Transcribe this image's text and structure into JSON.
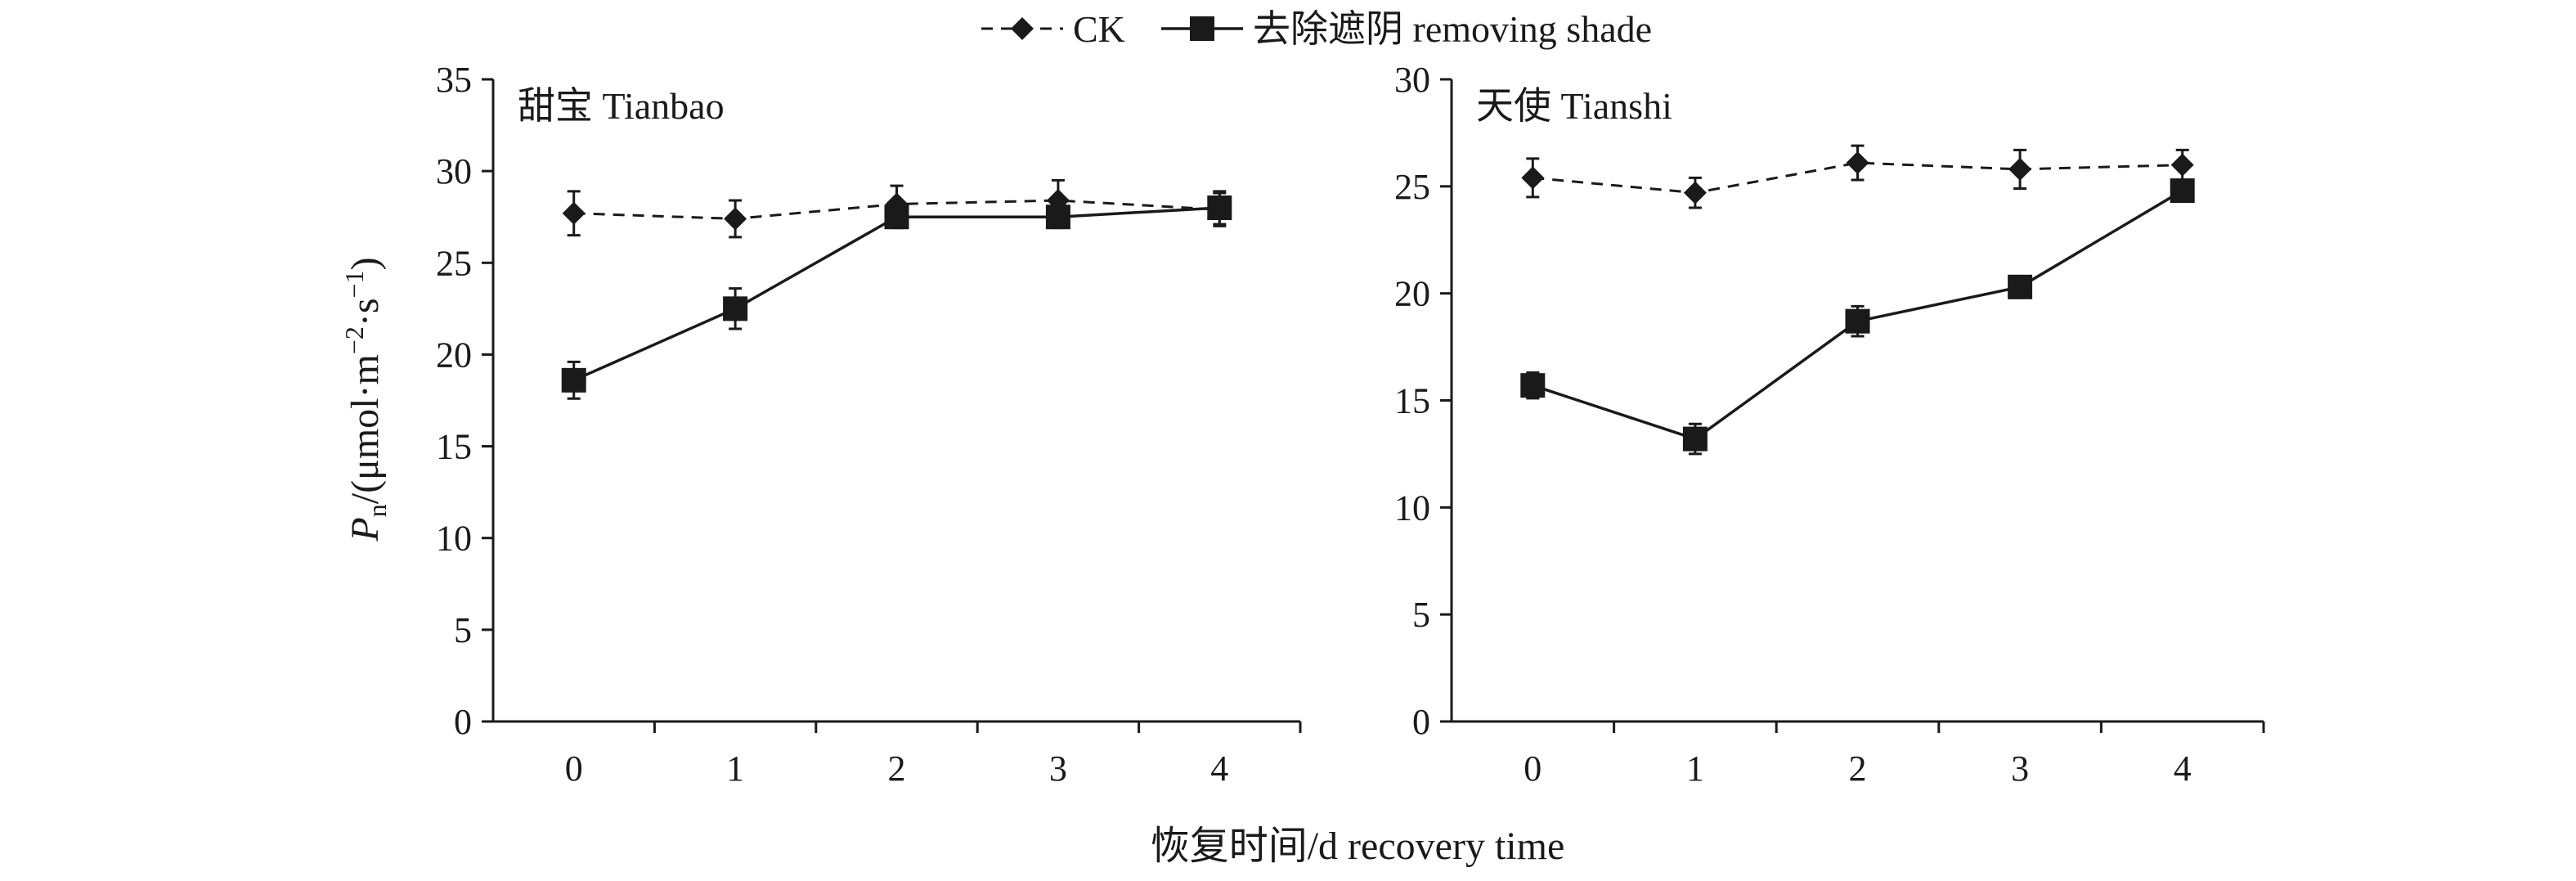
{
  "legend": {
    "ck": "CK",
    "removed": "去除遮阴 removing shade"
  },
  "x_axis_title": "恢复时间/d recovery time",
  "y_axis_title": {
    "main": "P",
    "sub": "n",
    "unit_open": "/(μmol·m",
    "exp1": "−2",
    "unit_mid": "·s",
    "exp2": "−1",
    "unit_close": ")"
  },
  "chart_data": [
    {
      "type": "line",
      "title": "甜宝 Tianbao",
      "categories": [
        "0",
        "1",
        "2",
        "3",
        "4"
      ],
      "x": [
        0,
        1,
        2,
        3,
        4
      ],
      "ylim": [
        0,
        35
      ],
      "yticks": [
        "0",
        "5",
        "10",
        "15",
        "20",
        "25",
        "30",
        "35"
      ],
      "grid": false,
      "legend_position": "top-center",
      "series": [
        {
          "name": "CK",
          "style": "dashed",
          "marker": "diamond",
          "values": [
            27.7,
            27.4,
            28.2,
            28.4,
            27.9
          ],
          "errors": [
            1.2,
            1.0,
            1.0,
            1.1,
            0.9
          ]
        },
        {
          "name": "去除遮阴 removing shade",
          "style": "solid",
          "marker": "square",
          "values": [
            18.6,
            22.5,
            27.5,
            27.5,
            28.0
          ],
          "errors": [
            1.0,
            1.1,
            0.6,
            0.6,
            0.9
          ]
        }
      ]
    },
    {
      "type": "line",
      "title": "天使 Tianshi",
      "categories": [
        "0",
        "1",
        "2",
        "3",
        "4"
      ],
      "x": [
        0,
        1,
        2,
        3,
        4
      ],
      "ylim": [
        0,
        30
      ],
      "yticks": [
        "0",
        "5",
        "10",
        "15",
        "20",
        "25",
        "30"
      ],
      "grid": false,
      "legend_position": "top-center",
      "series": [
        {
          "name": "CK",
          "style": "dashed",
          "marker": "diamond",
          "values": [
            25.4,
            24.7,
            26.1,
            25.8,
            26.0
          ],
          "errors": [
            0.9,
            0.7,
            0.8,
            0.9,
            0.7
          ]
        },
        {
          "name": "去除遮阴 removing shade",
          "style": "solid",
          "marker": "square",
          "values": [
            15.7,
            13.2,
            18.7,
            20.3,
            24.8
          ],
          "errors": [
            0.6,
            0.7,
            0.7,
            0.5,
            0.5
          ]
        }
      ]
    }
  ],
  "colors": {
    "ink": "#1a1a1a",
    "background": "#ffffff"
  }
}
